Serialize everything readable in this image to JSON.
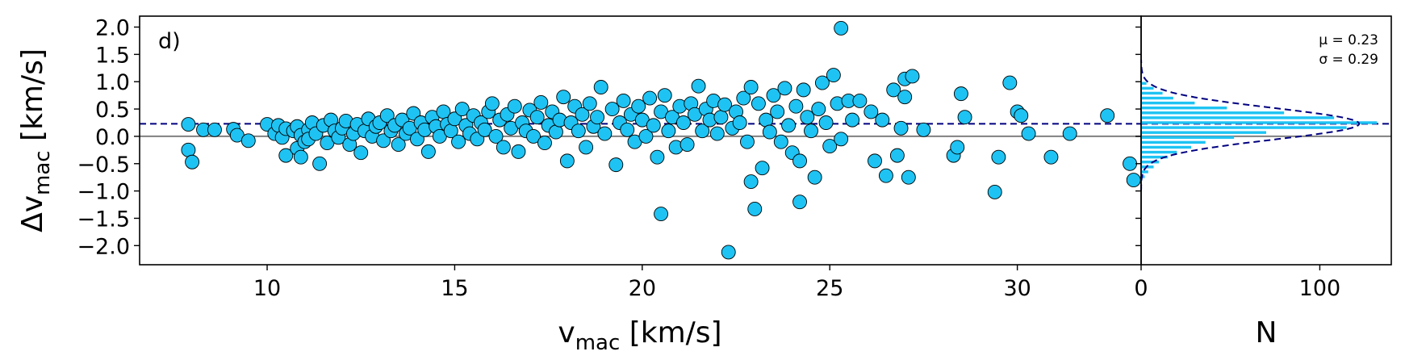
{
  "chart_data": [
    {
      "type": "scatter",
      "panel_label": "d)",
      "xlabel_main": "v",
      "xlabel_sub": "mac",
      "xlabel_unit": " [km/s]",
      "ylabel_main": "Δv",
      "ylabel_sub": "mac",
      "ylabel_unit": " [km/s]",
      "xlim": [
        6.6,
        33.3
      ],
      "ylim": [
        -2.35,
        2.2
      ],
      "xticks": [
        10,
        15,
        20,
        25,
        30
      ],
      "xtick_labels": [
        "10",
        "15",
        "20",
        "25",
        "30"
      ],
      "yticks": [
        2.0,
        1.5,
        1.0,
        0.5,
        0.0,
        -0.5,
        -1.0,
        -1.5,
        -2.0
      ],
      "ytick_labels": [
        "2.0",
        "1.5",
        "1.0",
        "0.5",
        "0.0",
        "−0.5",
        "−1.0",
        "−1.5",
        "−2.0"
      ],
      "reference_lines": [
        {
          "y": 0.0,
          "style": "solid",
          "color": "#808080"
        },
        {
          "y": 0.23,
          "style": "dashed",
          "color": "#000080"
        }
      ],
      "marker_color": "#1ec3f3",
      "marker_edge": "#000000",
      "points": [
        [
          7.9,
          0.22
        ],
        [
          7.9,
          -0.25
        ],
        [
          8.0,
          -0.47
        ],
        [
          8.3,
          0.12
        ],
        [
          8.6,
          0.12
        ],
        [
          9.1,
          0.13
        ],
        [
          9.2,
          0.02
        ],
        [
          9.5,
          -0.08
        ],
        [
          10.0,
          0.22
        ],
        [
          10.2,
          0.05
        ],
        [
          10.3,
          0.2
        ],
        [
          10.4,
          -0.02
        ],
        [
          10.5,
          -0.35
        ],
        [
          10.5,
          0.14
        ],
        [
          10.7,
          0.1
        ],
        [
          10.8,
          -0.22
        ],
        [
          10.8,
          0.18
        ],
        [
          10.9,
          -0.38
        ],
        [
          10.9,
          0.02
        ],
        [
          11.0,
          -0.1
        ],
        [
          11.1,
          0.12
        ],
        [
          11.1,
          -0.05
        ],
        [
          11.2,
          0.25
        ],
        [
          11.3,
          0.05
        ],
        [
          11.4,
          -0.5
        ],
        [
          11.5,
          0.2
        ],
        [
          11.6,
          -0.12
        ],
        [
          11.7,
          0.3
        ],
        [
          11.8,
          0.1
        ],
        [
          11.9,
          -0.02
        ],
        [
          12.0,
          0.15
        ],
        [
          12.1,
          0.28
        ],
        [
          12.2,
          -0.15
        ],
        [
          12.3,
          0.05
        ],
        [
          12.4,
          0.22
        ],
        [
          12.5,
          -0.3
        ],
        [
          12.6,
          0.1
        ],
        [
          12.7,
          0.32
        ],
        [
          12.8,
          0.0
        ],
        [
          12.9,
          0.18
        ],
        [
          13.0,
          0.25
        ],
        [
          13.1,
          -0.08
        ],
        [
          13.2,
          0.38
        ],
        [
          13.3,
          0.1
        ],
        [
          13.4,
          0.2
        ],
        [
          13.5,
          -0.15
        ],
        [
          13.6,
          0.3
        ],
        [
          13.7,
          0.05
        ],
        [
          13.8,
          0.15
        ],
        [
          13.9,
          0.42
        ],
        [
          14.0,
          -0.05
        ],
        [
          14.1,
          0.25
        ],
        [
          14.2,
          0.12
        ],
        [
          14.3,
          -0.28
        ],
        [
          14.4,
          0.35
        ],
        [
          14.5,
          0.18
        ],
        [
          14.6,
          0.0
        ],
        [
          14.7,
          0.45
        ],
        [
          14.8,
          0.22
        ],
        [
          14.9,
          0.1
        ],
        [
          15.0,
          0.32
        ],
        [
          15.1,
          -0.1
        ],
        [
          15.2,
          0.5
        ],
        [
          15.3,
          0.2
        ],
        [
          15.4,
          0.05
        ],
        [
          15.5,
          0.38
        ],
        [
          15.6,
          -0.05
        ],
        [
          15.7,
          0.25
        ],
        [
          15.8,
          0.12
        ],
        [
          15.9,
          0.45
        ],
        [
          16.0,
          0.6
        ],
        [
          16.1,
          0.0
        ],
        [
          16.2,
          0.3
        ],
        [
          16.3,
          -0.2
        ],
        [
          16.4,
          0.4
        ],
        [
          16.5,
          0.15
        ],
        [
          16.6,
          0.55
        ],
        [
          16.7,
          -0.28
        ],
        [
          16.8,
          0.25
        ],
        [
          16.9,
          0.1
        ],
        [
          17.0,
          0.48
        ],
        [
          17.1,
          0.0
        ],
        [
          17.2,
          0.35
        ],
        [
          17.3,
          0.62
        ],
        [
          17.4,
          -0.12
        ],
        [
          17.5,
          0.2
        ],
        [
          17.6,
          0.45
        ],
        [
          17.7,
          0.08
        ],
        [
          17.8,
          0.3
        ],
        [
          17.9,
          0.72
        ],
        [
          18.0,
          -0.45
        ],
        [
          18.1,
          0.25
        ],
        [
          18.2,
          0.55
        ],
        [
          18.3,
          0.1
        ],
        [
          18.4,
          0.4
        ],
        [
          18.5,
          -0.2
        ],
        [
          18.6,
          0.6
        ],
        [
          18.7,
          0.18
        ],
        [
          18.8,
          0.35
        ],
        [
          18.9,
          0.9
        ],
        [
          19.0,
          0.05
        ],
        [
          19.2,
          0.5
        ],
        [
          19.3,
          -0.52
        ],
        [
          19.4,
          0.25
        ],
        [
          19.5,
          0.65
        ],
        [
          19.6,
          0.12
        ],
        [
          19.7,
          0.4
        ],
        [
          19.8,
          -0.1
        ],
        [
          19.9,
          0.55
        ],
        [
          20.0,
          0.3
        ],
        [
          20.1,
          0.0
        ],
        [
          20.2,
          0.7
        ],
        [
          20.3,
          0.2
        ],
        [
          20.4,
          -0.38
        ],
        [
          20.5,
          0.45
        ],
        [
          20.5,
          -1.42
        ],
        [
          20.6,
          0.75
        ],
        [
          20.7,
          0.1
        ],
        [
          20.8,
          0.35
        ],
        [
          20.9,
          -0.2
        ],
        [
          21.0,
          0.55
        ],
        [
          21.1,
          0.25
        ],
        [
          21.2,
          -0.15
        ],
        [
          21.3,
          0.6
        ],
        [
          21.4,
          0.4
        ],
        [
          21.5,
          0.92
        ],
        [
          21.6,
          0.1
        ],
        [
          21.7,
          0.5
        ],
        [
          21.8,
          0.3
        ],
        [
          21.9,
          0.65
        ],
        [
          22.0,
          0.05
        ],
        [
          22.1,
          0.35
        ],
        [
          22.2,
          0.58
        ],
        [
          22.3,
          -2.12
        ],
        [
          22.4,
          0.15
        ],
        [
          22.5,
          0.45
        ],
        [
          22.6,
          0.25
        ],
        [
          22.7,
          0.7
        ],
        [
          22.8,
          -0.1
        ],
        [
          22.9,
          0.9
        ],
        [
          22.9,
          -0.83
        ],
        [
          23.0,
          -1.33
        ],
        [
          23.1,
          0.6
        ],
        [
          23.2,
          -0.58
        ],
        [
          23.3,
          0.3
        ],
        [
          23.4,
          0.08
        ],
        [
          23.5,
          0.75
        ],
        [
          23.6,
          0.45
        ],
        [
          23.7,
          -0.1
        ],
        [
          23.8,
          0.88
        ],
        [
          23.9,
          0.2
        ],
        [
          24.0,
          -0.3
        ],
        [
          24.1,
          0.55
        ],
        [
          24.2,
          -0.45
        ],
        [
          24.2,
          -1.2
        ],
        [
          24.3,
          0.85
        ],
        [
          24.4,
          0.35
        ],
        [
          24.5,
          0.1
        ],
        [
          24.6,
          -0.75
        ],
        [
          24.7,
          0.5
        ],
        [
          24.8,
          0.98
        ],
        [
          24.9,
          0.25
        ],
        [
          25.0,
          -0.18
        ],
        [
          25.1,
          1.12
        ],
        [
          25.2,
          0.6
        ],
        [
          25.3,
          -0.05
        ],
        [
          25.3,
          1.98
        ],
        [
          25.5,
          0.65
        ],
        [
          25.6,
          0.3
        ],
        [
          25.8,
          0.65
        ],
        [
          26.1,
          0.45
        ],
        [
          26.2,
          -0.45
        ],
        [
          26.4,
          0.3
        ],
        [
          26.5,
          -0.72
        ],
        [
          26.7,
          0.85
        ],
        [
          26.8,
          -0.35
        ],
        [
          26.9,
          0.15
        ],
        [
          27.0,
          1.05
        ],
        [
          27.0,
          0.72
        ],
        [
          27.1,
          -0.75
        ],
        [
          27.2,
          1.1
        ],
        [
          27.5,
          0.12
        ],
        [
          28.3,
          -0.35
        ],
        [
          28.4,
          -0.2
        ],
        [
          28.5,
          0.78
        ],
        [
          28.6,
          0.35
        ],
        [
          29.4,
          -1.02
        ],
        [
          29.5,
          -0.38
        ],
        [
          29.8,
          0.98
        ],
        [
          30.0,
          0.45
        ],
        [
          30.1,
          0.38
        ],
        [
          30.3,
          0.05
        ],
        [
          30.9,
          -0.38
        ],
        [
          31.4,
          0.05
        ],
        [
          32.4,
          0.38
        ],
        [
          33.0,
          -0.5
        ],
        [
          33.1,
          -0.8
        ]
      ]
    },
    {
      "type": "bar",
      "orientation": "horizontal",
      "xlabel": "N",
      "xlim": [
        0,
        140
      ],
      "ylim": [
        -2.35,
        2.2
      ],
      "xticks": [
        0,
        100
      ],
      "xtick_labels": [
        "0",
        "100"
      ],
      "bar_color": "#1ec3f3",
      "bin_width": 0.09,
      "bins": [
        [
          -0.74,
          2
        ],
        [
          -0.65,
          4
        ],
        [
          -0.56,
          7
        ],
        [
          -0.47,
          10
        ],
        [
          -0.38,
          15
        ],
        [
          -0.29,
          20
        ],
        [
          -0.2,
          28
        ],
        [
          -0.11,
          36
        ],
        [
          -0.02,
          52
        ],
        [
          0.07,
          70
        ],
        [
          0.16,
          115
        ],
        [
          0.25,
          132
        ],
        [
          0.34,
          108
        ],
        [
          0.43,
          80
        ],
        [
          0.52,
          48
        ],
        [
          0.61,
          30
        ],
        [
          0.7,
          18
        ],
        [
          0.79,
          12
        ],
        [
          0.88,
          7
        ],
        [
          0.97,
          3
        ]
      ],
      "gaussian_fit": {
        "mu": 0.23,
        "sigma": 0.29,
        "peak": 122,
        "color": "#000080",
        "style": "dashed"
      },
      "annotation_mu": "μ = 0.23",
      "annotation_sigma": "σ = 0.29"
    }
  ]
}
